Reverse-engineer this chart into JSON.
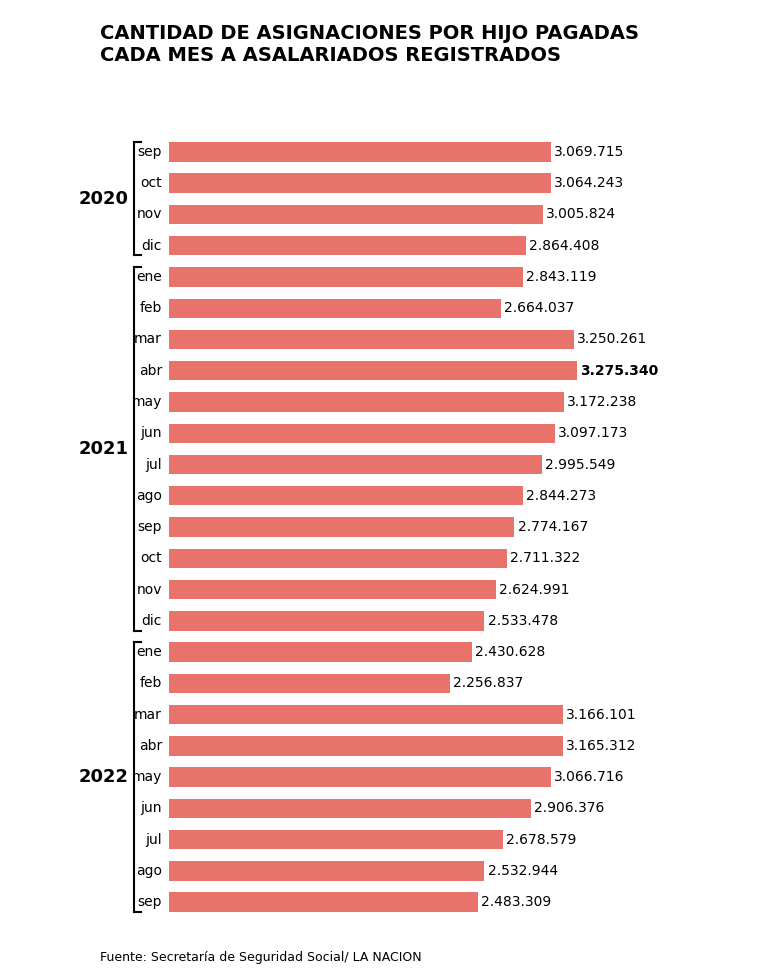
{
  "title": "CANTIDAD DE ASIGNACIONES POR HIJO PAGADAS\nCADA MES A ASALARIADOS REGISTRADOS",
  "source": "Fuente: Secretaría de Seguridad Social/ LA NACION",
  "bar_color": "#E8736A",
  "background_color": "#FFFFFF",
  "categories": [
    "sep",
    "oct",
    "nov",
    "dic",
    "ene",
    "feb",
    "mar",
    "abr",
    "may",
    "jun",
    "jul",
    "ago",
    "sep",
    "oct",
    "nov",
    "dic",
    "ene",
    "feb",
    "mar",
    "abr",
    "may",
    "jun",
    "jul",
    "ago",
    "sep"
  ],
  "values": [
    3069715,
    3064243,
    3005824,
    2864408,
    2843119,
    2664037,
    3250261,
    3275340,
    3172238,
    3097173,
    2995549,
    2844273,
    2774167,
    2711322,
    2624991,
    2533478,
    2430628,
    2256837,
    3166101,
    3165312,
    3066716,
    2906376,
    2678579,
    2532944,
    2483309
  ],
  "value_labels": [
    "3.069.715",
    "3.064.243",
    "3.005.824",
    "2.864.408",
    "2.843.119",
    "2.664.037",
    "3.250.261",
    "3.275.340",
    "3.172.238",
    "3.097.173",
    "2.995.549",
    "2.844.273",
    "2.774.167",
    "2.711.322",
    "2.624.991",
    "2.533.478",
    "2.430.628",
    "2.256.837",
    "3.166.101",
    "3.165.312",
    "3.066.716",
    "2.906.376",
    "2.678.579",
    "2.532.944",
    "2.483.309"
  ],
  "bold_index": 7,
  "year_labels": [
    "2020",
    "2021",
    "2022"
  ],
  "year_bracket_ranges": [
    [
      0,
      3
    ],
    [
      4,
      15
    ],
    [
      16,
      24
    ]
  ],
  "xlim": [
    0,
    3700000
  ],
  "title_fontsize": 14,
  "label_fontsize": 10,
  "value_fontsize": 10,
  "year_fontsize": 13,
  "source_fontsize": 9
}
